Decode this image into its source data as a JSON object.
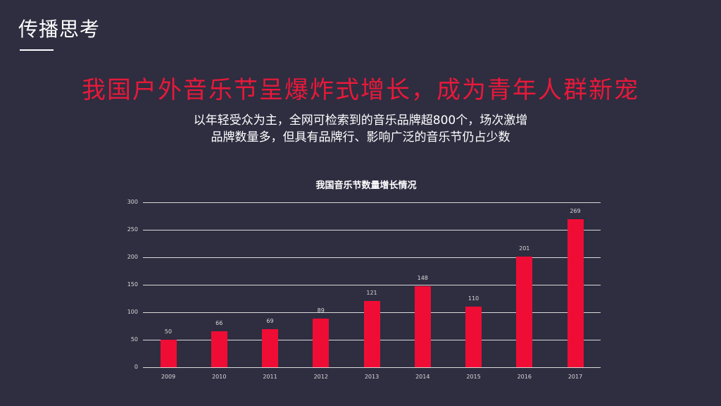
{
  "header": {
    "section_title": "传播思考",
    "headline": "我国户外音乐节呈爆炸式增长，成为青年人群新宠",
    "subtitle_line1": "以年轻受众为主，全网可检索到的音乐品牌超800个，场次激增",
    "subtitle_line2": "品牌数量多，但具有品牌行、影响广泛的音乐节仍占少数"
  },
  "colors": {
    "background": "#2f2d40",
    "accent": "#e8193a",
    "bar": "#f00d35",
    "gridline": "#d9d9d9"
  },
  "chart_data": {
    "type": "bar",
    "title": "我国音乐节数量增长情况",
    "xlabel": "",
    "ylabel": "",
    "categories": [
      "2009",
      "2010",
      "2011",
      "2012",
      "2013",
      "2014",
      "2015",
      "2016",
      "2017"
    ],
    "values": [
      50,
      66,
      69,
      89,
      121,
      148,
      110,
      201,
      269
    ],
    "ylim": [
      0,
      300
    ],
    "yticks": [
      0,
      50,
      100,
      150,
      200,
      250,
      300
    ],
    "grid": true,
    "legend": null,
    "data_labels": true
  }
}
